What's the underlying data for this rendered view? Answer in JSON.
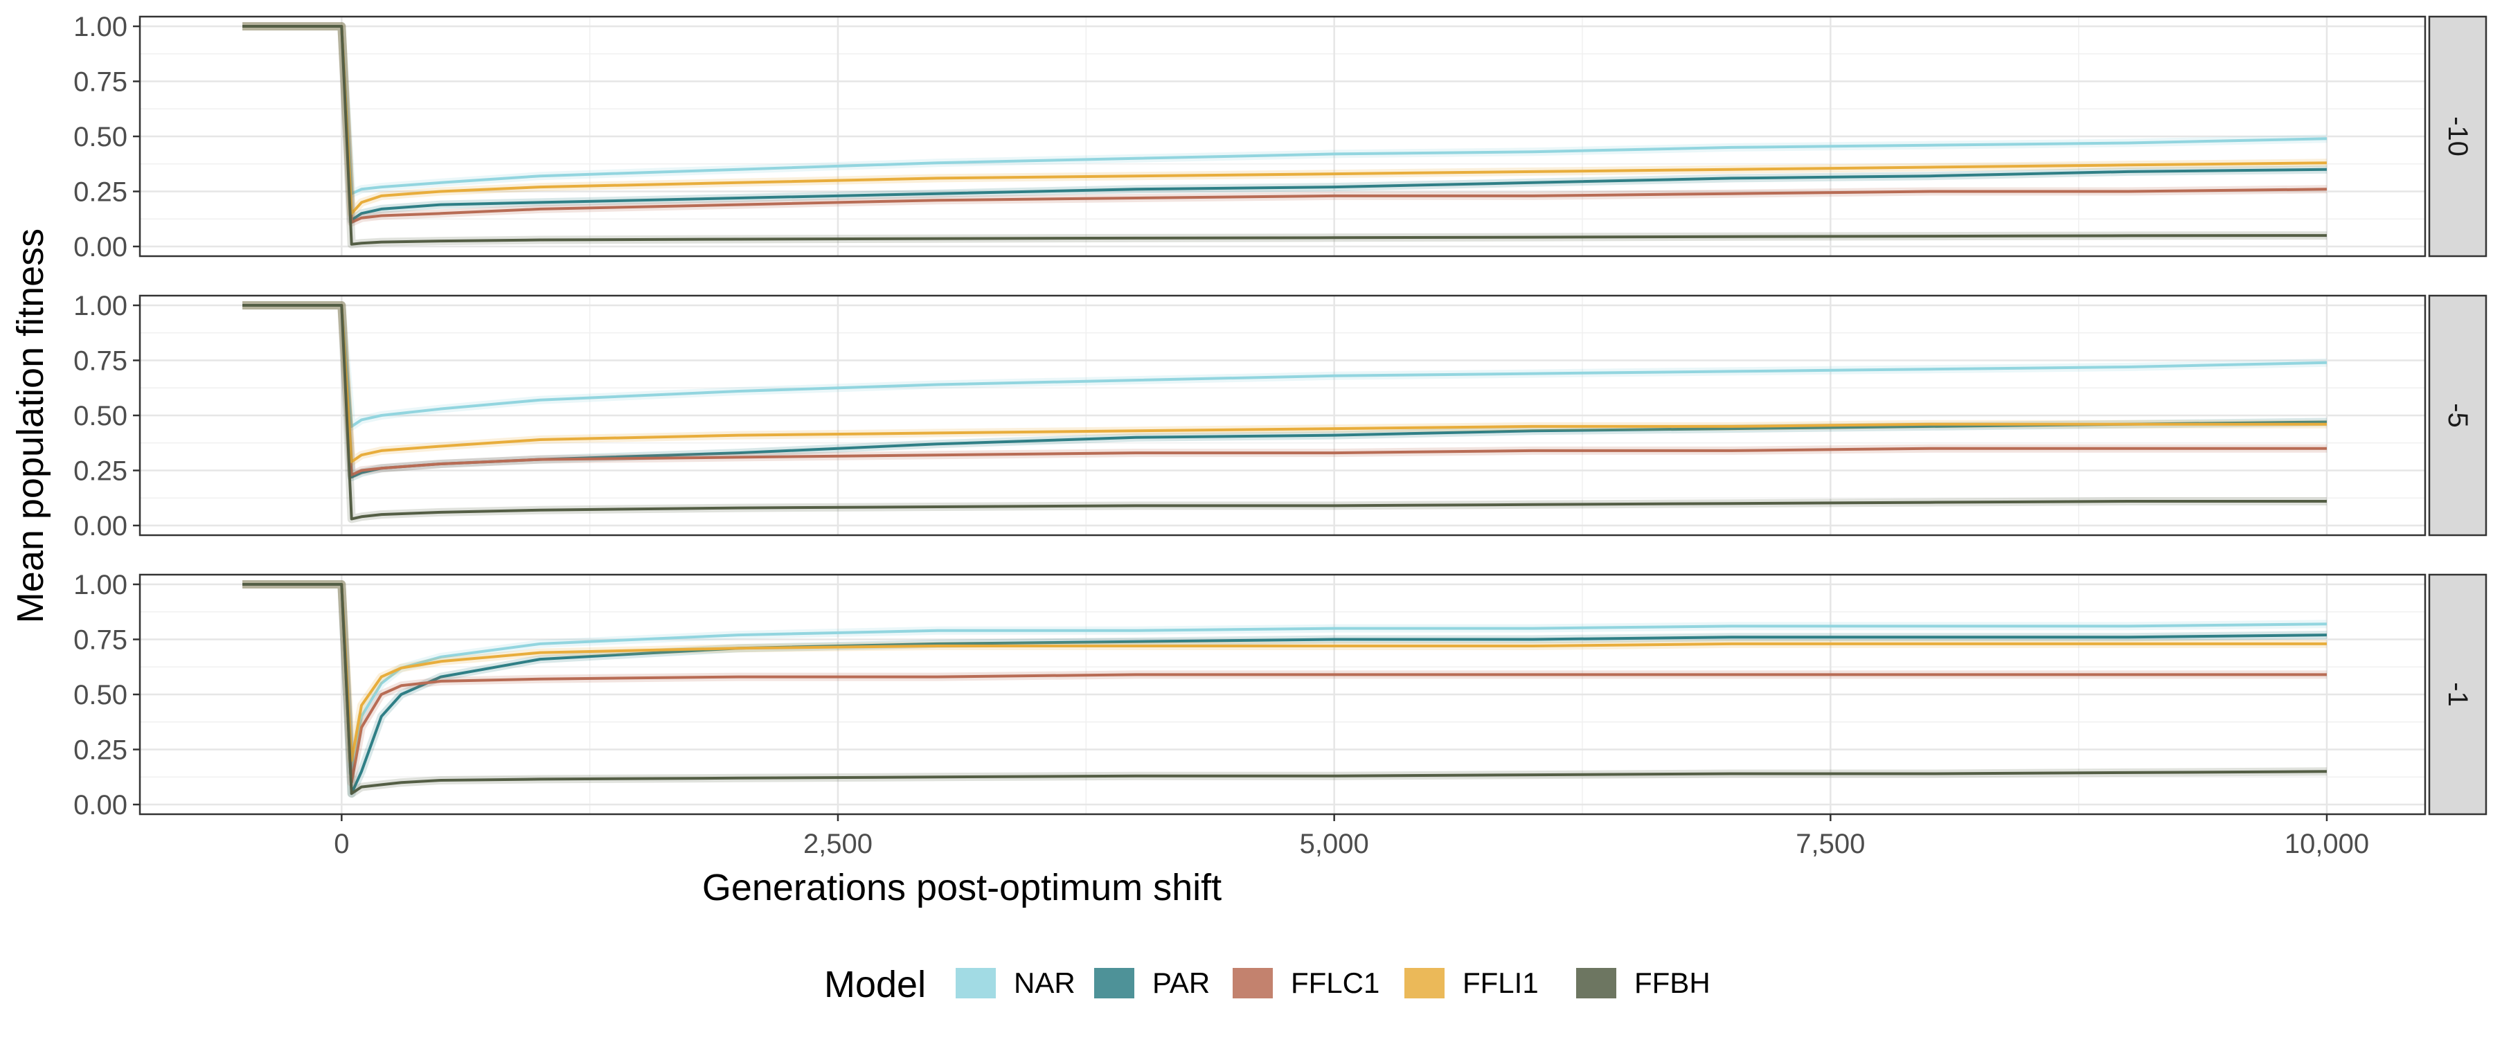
{
  "chart_data": {
    "type": "line",
    "xlabel": "Generations post-optimum shift",
    "ylabel": "Mean population fitness",
    "xlim": [
      -500,
      10000
    ],
    "ylim": [
      0,
      1
    ],
    "x_ticks": [
      0,
      2500,
      5000,
      7500,
      10000
    ],
    "x_tick_labels": [
      "0",
      "2,500",
      "5,000",
      "7,500",
      "10,000"
    ],
    "y_ticks": [
      0,
      0.25,
      0.5,
      0.75,
      1
    ],
    "y_tick_labels": [
      "0.00",
      "0.25",
      "0.50",
      "0.75",
      "1.00"
    ],
    "grid": true,
    "legend": {
      "title": "Model",
      "placement": "bottom",
      "entries": [
        {
          "name": "NAR",
          "color": "#92d5df"
        },
        {
          "name": "PAR",
          "color": "#2f7f86"
        },
        {
          "name": "FFLC1",
          "color": "#b86c55"
        },
        {
          "name": "FFLI1",
          "color": "#e8ad3c"
        },
        {
          "name": "FFBH",
          "color": "#545e45"
        }
      ]
    },
    "panels": [
      {
        "strip_label": "-10",
        "series": [
          {
            "name": "NAR",
            "x": [
              -500,
              0,
              50,
              100,
              200,
              500,
              1000,
              2000,
              3000,
              4000,
              5000,
              6000,
              7000,
              8000,
              9000,
              10000
            ],
            "y": [
              1,
              1,
              0.24,
              0.26,
              0.27,
              0.29,
              0.32,
              0.35,
              0.38,
              0.4,
              0.42,
              0.43,
              0.45,
              0.46,
              0.47,
              0.49
            ]
          },
          {
            "name": "PAR",
            "x": [
              -500,
              0,
              50,
              100,
              200,
              500,
              1000,
              2000,
              3000,
              4000,
              5000,
              6000,
              7000,
              8000,
              9000,
              10000
            ],
            "y": [
              1,
              1,
              0.12,
              0.15,
              0.17,
              0.19,
              0.2,
              0.22,
              0.24,
              0.26,
              0.27,
              0.29,
              0.31,
              0.32,
              0.34,
              0.35
            ]
          },
          {
            "name": "FFLC1",
            "x": [
              -500,
              0,
              50,
              100,
              200,
              500,
              1000,
              2000,
              3000,
              4000,
              5000,
              6000,
              7000,
              8000,
              9000,
              10000
            ],
            "y": [
              1,
              1,
              0.11,
              0.13,
              0.14,
              0.15,
              0.17,
              0.19,
              0.21,
              0.22,
              0.23,
              0.23,
              0.24,
              0.25,
              0.25,
              0.26
            ]
          },
          {
            "name": "FFLI1",
            "x": [
              -500,
              0,
              50,
              100,
              200,
              500,
              1000,
              2000,
              3000,
              4000,
              5000,
              6000,
              7000,
              8000,
              9000,
              10000
            ],
            "y": [
              1,
              1,
              0.15,
              0.2,
              0.23,
              0.25,
              0.27,
              0.29,
              0.31,
              0.32,
              0.33,
              0.34,
              0.35,
              0.36,
              0.37,
              0.38
            ]
          },
          {
            "name": "FFBH",
            "x": [
              -500,
              0,
              50,
              100,
              200,
              500,
              1000,
              2000,
              3000,
              4000,
              5000,
              6000,
              7000,
              8000,
              9000,
              10000
            ],
            "y": [
              1,
              1,
              0.01,
              0.015,
              0.02,
              0.025,
              0.03,
              0.033,
              0.036,
              0.038,
              0.04,
              0.042,
              0.045,
              0.047,
              0.049,
              0.05
            ]
          }
        ]
      },
      {
        "strip_label": "-5",
        "series": [
          {
            "name": "NAR",
            "x": [
              -500,
              0,
              50,
              100,
              200,
              500,
              1000,
              2000,
              3000,
              4000,
              5000,
              6000,
              7000,
              8000,
              9000,
              10000
            ],
            "y": [
              1,
              1,
              0.45,
              0.48,
              0.5,
              0.53,
              0.57,
              0.61,
              0.64,
              0.66,
              0.68,
              0.69,
              0.7,
              0.71,
              0.72,
              0.74
            ]
          },
          {
            "name": "PAR",
            "x": [
              -500,
              0,
              50,
              100,
              200,
              500,
              1000,
              2000,
              3000,
              4000,
              5000,
              6000,
              7000,
              8000,
              9000,
              10000
            ],
            "y": [
              1,
              1,
              0.22,
              0.24,
              0.26,
              0.28,
              0.3,
              0.33,
              0.37,
              0.4,
              0.41,
              0.43,
              0.44,
              0.45,
              0.46,
              0.47
            ]
          },
          {
            "name": "FFLC1",
            "x": [
              -500,
              0,
              50,
              100,
              200,
              500,
              1000,
              2000,
              3000,
              4000,
              5000,
              6000,
              7000,
              8000,
              9000,
              10000
            ],
            "y": [
              1,
              1,
              0.23,
              0.25,
              0.26,
              0.28,
              0.3,
              0.31,
              0.32,
              0.33,
              0.33,
              0.34,
              0.34,
              0.35,
              0.35,
              0.35
            ]
          },
          {
            "name": "FFLI1",
            "x": [
              -500,
              0,
              50,
              100,
              200,
              500,
              1000,
              2000,
              3000,
              4000,
              5000,
              6000,
              7000,
              8000,
              9000,
              10000
            ],
            "y": [
              1,
              1,
              0.29,
              0.32,
              0.34,
              0.36,
              0.39,
              0.41,
              0.42,
              0.43,
              0.44,
              0.45,
              0.45,
              0.46,
              0.46,
              0.46
            ]
          },
          {
            "name": "FFBH",
            "x": [
              -500,
              0,
              50,
              100,
              200,
              500,
              1000,
              2000,
              3000,
              4000,
              5000,
              6000,
              7000,
              8000,
              9000,
              10000
            ],
            "y": [
              1,
              1,
              0.03,
              0.04,
              0.05,
              0.06,
              0.07,
              0.08,
              0.085,
              0.09,
              0.09,
              0.095,
              0.1,
              0.105,
              0.11,
              0.11
            ]
          }
        ]
      },
      {
        "strip_label": "-1",
        "series": [
          {
            "name": "NAR",
            "x": [
              -500,
              0,
              50,
              100,
              200,
              300,
              500,
              1000,
              2000,
              3000,
              4000,
              5000,
              6000,
              7000,
              8000,
              9000,
              10000
            ],
            "y": [
              1,
              1,
              0.15,
              0.4,
              0.55,
              0.62,
              0.67,
              0.73,
              0.77,
              0.79,
              0.79,
              0.8,
              0.8,
              0.81,
              0.81,
              0.81,
              0.82
            ]
          },
          {
            "name": "PAR",
            "x": [
              -500,
              0,
              50,
              100,
              200,
              300,
              500,
              1000,
              2000,
              3000,
              4000,
              5000,
              6000,
              7000,
              8000,
              9000,
              10000
            ],
            "y": [
              1,
              1,
              0.05,
              0.15,
              0.4,
              0.5,
              0.58,
              0.66,
              0.71,
              0.73,
              0.74,
              0.75,
              0.75,
              0.76,
              0.76,
              0.76,
              0.77
            ]
          },
          {
            "name": "FFLC1",
            "x": [
              -500,
              0,
              50,
              100,
              200,
              300,
              500,
              1000,
              2000,
              3000,
              4000,
              5000,
              6000,
              7000,
              8000,
              9000,
              10000
            ],
            "y": [
              1,
              1,
              0.1,
              0.35,
              0.5,
              0.54,
              0.56,
              0.57,
              0.58,
              0.58,
              0.59,
              0.59,
              0.59,
              0.59,
              0.59,
              0.59,
              0.59
            ]
          },
          {
            "name": "FFLI1",
            "x": [
              -500,
              0,
              50,
              100,
              200,
              300,
              500,
              1000,
              2000,
              3000,
              4000,
              5000,
              6000,
              7000,
              8000,
              9000,
              10000
            ],
            "y": [
              1,
              1,
              0.2,
              0.45,
              0.58,
              0.62,
              0.65,
              0.69,
              0.71,
              0.72,
              0.72,
              0.72,
              0.72,
              0.73,
              0.73,
              0.73,
              0.73
            ]
          },
          {
            "name": "FFBH",
            "x": [
              -500,
              0,
              50,
              100,
              200,
              300,
              500,
              1000,
              2000,
              3000,
              4000,
              5000,
              6000,
              7000,
              8000,
              9000,
              10000
            ],
            "y": [
              1,
              1,
              0.05,
              0.08,
              0.09,
              0.1,
              0.11,
              0.115,
              0.12,
              0.125,
              0.13,
              0.13,
              0.135,
              0.14,
              0.14,
              0.145,
              0.15
            ]
          }
        ]
      }
    ]
  }
}
